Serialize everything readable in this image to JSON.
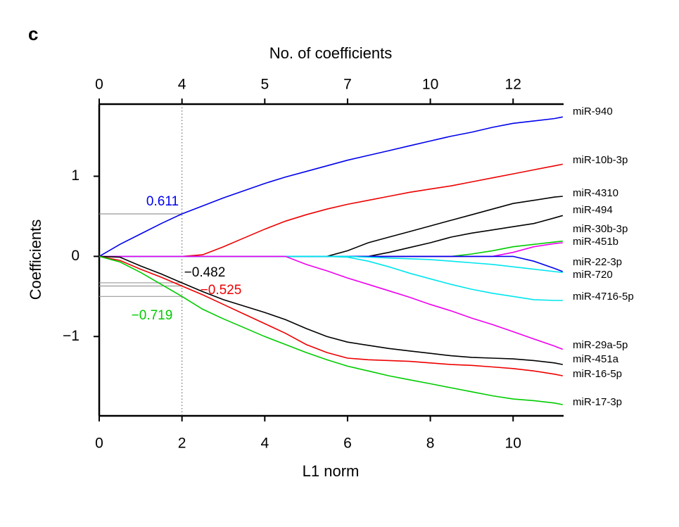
{
  "panel_label": "c",
  "chart_data": {
    "type": "line",
    "xlabel": "L1 norm",
    "ylabel": "Coefficients",
    "x2label": "No. of coefficients",
    "xlim": [
      0,
      11.22
    ],
    "ylim": [
      -1.99,
      1.9
    ],
    "xticks": [
      0,
      2,
      4,
      6,
      8,
      10
    ],
    "yticks": [
      {
        "value": -1,
        "label": "−1"
      },
      0,
      1
    ],
    "x2ticks": [
      {
        "value": 0,
        "label": "0"
      },
      {
        "value": 2,
        "label": "4"
      },
      {
        "value": 4,
        "label": "5"
      },
      {
        "value": 6,
        "label": "7"
      },
      {
        "value": 8,
        "label": "10"
      },
      {
        "value": 10,
        "label": "12"
      }
    ],
    "vline": 2,
    "x": [
      0,
      0.5,
      1,
      1.5,
      2,
      2.5,
      3,
      3.5,
      4,
      4.5,
      5,
      5.5,
      6,
      6.5,
      7,
      7.5,
      8,
      8.5,
      9,
      9.5,
      10,
      10.5,
      11,
      11.2
    ],
    "series": [
      {
        "name": "miR-940",
        "color": "#0000ee",
        "values": [
          0,
          0.15,
          0.28,
          0.41,
          0.53,
          0.63,
          0.73,
          0.82,
          0.91,
          0.99,
          1.06,
          1.13,
          1.2,
          1.26,
          1.32,
          1.38,
          1.44,
          1.5,
          1.55,
          1.61,
          1.66,
          1.69,
          1.72,
          1.74
        ]
      },
      {
        "name": "miR-10b-3p",
        "color": "#ee0000",
        "values": [
          0,
          0,
          0,
          0,
          0,
          0.02,
          0.12,
          0.23,
          0.34,
          0.44,
          0.52,
          0.59,
          0.65,
          0.7,
          0.75,
          0.8,
          0.84,
          0.88,
          0.93,
          0.98,
          1.03,
          1.08,
          1.13,
          1.15
        ]
      },
      {
        "name": "miR-4310",
        "color": "#000000",
        "values": [
          0,
          0,
          0,
          0,
          0,
          0,
          0,
          0,
          0,
          0,
          0,
          0,
          0.07,
          0.17,
          0.24,
          0.31,
          0.38,
          0.45,
          0.52,
          0.59,
          0.66,
          0.7,
          0.74,
          0.75
        ]
      },
      {
        "name": "miR-494",
        "color": "#000000",
        "values": [
          0,
          0,
          0,
          0,
          0,
          0,
          0,
          0,
          0,
          0,
          0,
          0,
          0,
          0,
          0.05,
          0.11,
          0.17,
          0.24,
          0.29,
          0.33,
          0.37,
          0.41,
          0.48,
          0.51
        ]
      },
      {
        "name": "miR-30b-3p",
        "color": "#00cc00",
        "values": [
          0,
          0,
          0,
          0,
          0,
          0,
          0,
          0,
          0,
          0,
          0,
          0,
          0,
          0,
          0,
          0,
          0,
          0,
          0.03,
          0.07,
          0.12,
          0.15,
          0.18,
          0.19
        ]
      },
      {
        "name": "miR-451b",
        "color": "#ee00ee",
        "values": [
          0,
          0,
          0,
          0,
          0,
          0,
          0,
          0,
          0,
          0,
          0,
          0,
          0,
          0,
          0,
          0,
          0,
          0,
          0,
          0,
          0.05,
          0.12,
          0.16,
          0.17
        ]
      },
      {
        "name": "miR-22-3p",
        "color": "#0000ee",
        "values": [
          0,
          0,
          0,
          0,
          0,
          0,
          0,
          0,
          0,
          0,
          0,
          0,
          0,
          0,
          0,
          0,
          0,
          0,
          0,
          0,
          0,
          -0.06,
          -0.15,
          -0.19
        ]
      },
      {
        "name": "miR-720",
        "color": "#00e5ee",
        "values": [
          0,
          0,
          0,
          0,
          0,
          0,
          0,
          0,
          0,
          0,
          0,
          0,
          0,
          -0.01,
          -0.02,
          -0.03,
          -0.04,
          -0.06,
          -0.08,
          -0.1,
          -0.13,
          -0.16,
          -0.19,
          -0.2
        ]
      },
      {
        "name": "miR-4716-5p",
        "color": "#00e5ee",
        "values": [
          0,
          0,
          0,
          0,
          0,
          0,
          0,
          0,
          0,
          0,
          0,
          0,
          -0.01,
          -0.06,
          -0.13,
          -0.21,
          -0.28,
          -0.35,
          -0.41,
          -0.46,
          -0.5,
          -0.54,
          -0.55,
          -0.55
        ]
      },
      {
        "name": "miR-29a-5p",
        "color": "#ee00ee",
        "values": [
          0,
          0,
          0,
          0,
          0,
          0,
          0,
          0,
          0,
          0,
          -0.1,
          -0.18,
          -0.27,
          -0.35,
          -0.43,
          -0.51,
          -0.6,
          -0.68,
          -0.77,
          -0.85,
          -0.94,
          -1.03,
          -1.12,
          -1.16
        ]
      },
      {
        "name": "miR-451a",
        "color": "#000000",
        "values": [
          0,
          -0.01,
          -0.12,
          -0.22,
          -0.33,
          -0.44,
          -0.54,
          -0.62,
          -0.7,
          -0.79,
          -0.9,
          -1.0,
          -1.07,
          -1.11,
          -1.15,
          -1.18,
          -1.21,
          -1.24,
          -1.26,
          -1.27,
          -1.28,
          -1.3,
          -1.33,
          -1.35
        ]
      },
      {
        "name": "miR-16-5p",
        "color": "#ee0000",
        "values": [
          0,
          -0.05,
          -0.16,
          -0.26,
          -0.37,
          -0.48,
          -0.6,
          -0.72,
          -0.84,
          -0.96,
          -1.1,
          -1.2,
          -1.27,
          -1.29,
          -1.3,
          -1.31,
          -1.33,
          -1.35,
          -1.36,
          -1.38,
          -1.4,
          -1.43,
          -1.47,
          -1.49
        ]
      },
      {
        "name": "miR-17-3p",
        "color": "#00cc00",
        "values": [
          0,
          -0.07,
          -0.2,
          -0.35,
          -0.5,
          -0.66,
          -0.78,
          -0.89,
          -1.0,
          -1.1,
          -1.2,
          -1.29,
          -1.37,
          -1.43,
          -1.49,
          -1.54,
          -1.59,
          -1.64,
          -1.69,
          -1.74,
          -1.78,
          -1.8,
          -1.83,
          -1.85
        ]
      }
    ],
    "annotations": [
      {
        "text": "0.611",
        "series": 0,
        "color": "#0000ee"
      },
      {
        "text": "−0.482",
        "series": 10,
        "color": "#000000"
      },
      {
        "text": "−0.525",
        "series": 11,
        "color": "#ee0000"
      },
      {
        "text": "−0.719",
        "series": 12,
        "color": "#00cc00"
      }
    ]
  }
}
